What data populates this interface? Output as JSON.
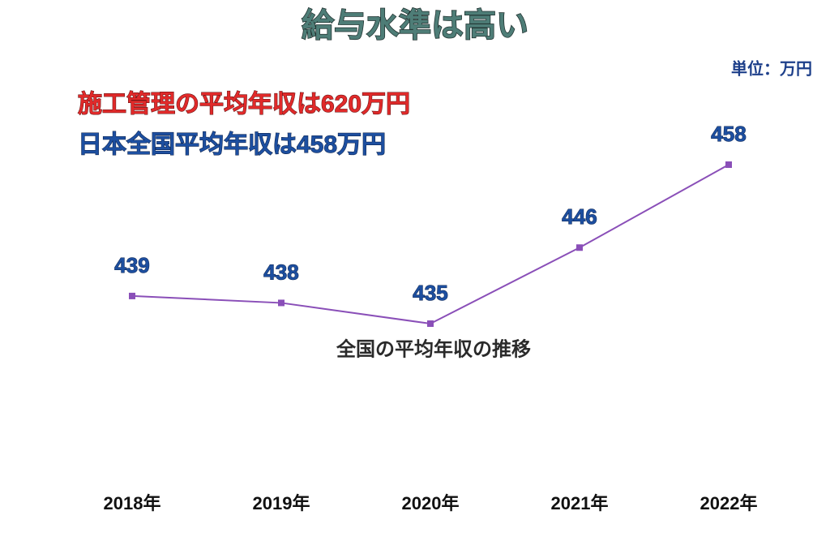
{
  "chart_data": {
    "type": "line",
    "title": "給与水準は高い",
    "subtitle": "全国の平均年収の推移",
    "unit": "単位：万円",
    "annotations": [
      "施工管理の平均年収は620万円",
      "日本全国平均年収は458万円"
    ],
    "categories": [
      "2018年",
      "2019年",
      "2020年",
      "2021年",
      "2022年"
    ],
    "values": [
      439,
      438,
      435,
      446,
      458
    ],
    "color": "#8a4fb8"
  }
}
